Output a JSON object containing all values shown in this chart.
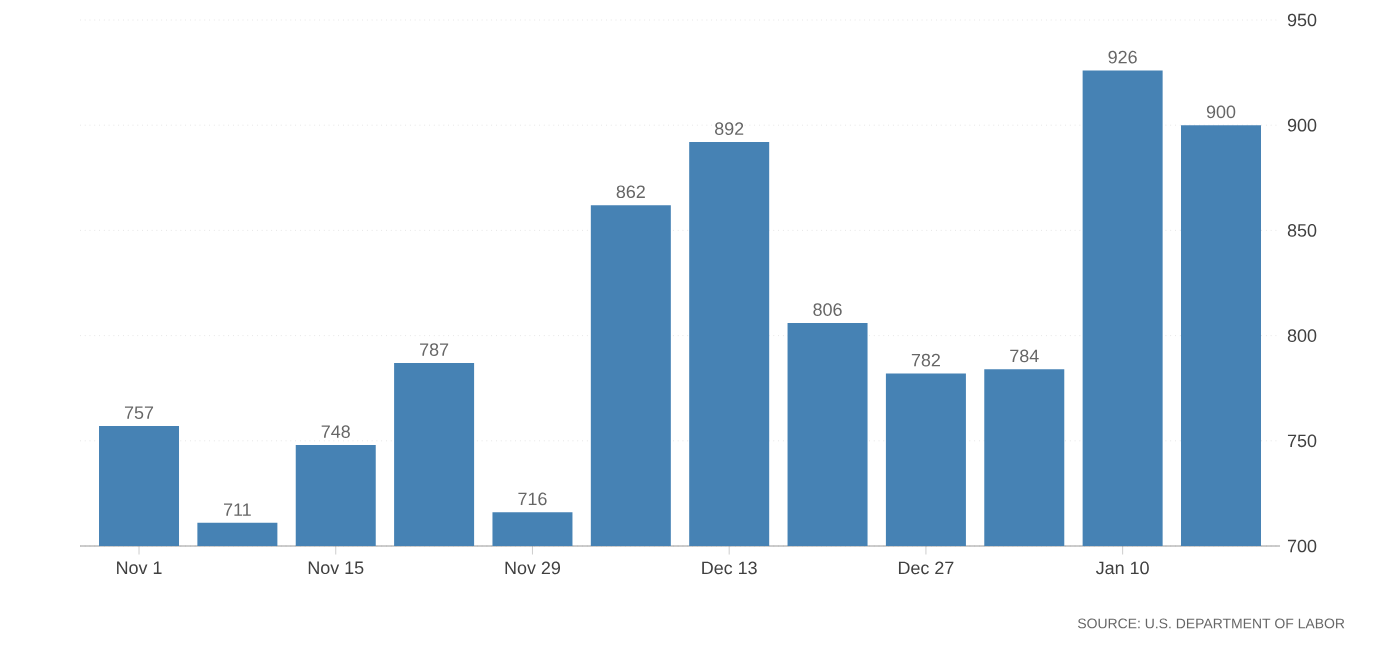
{
  "chart_data": {
    "type": "bar",
    "categories": [
      "Nov 1",
      null,
      "Nov 15",
      null,
      "Nov 29",
      null,
      "Dec 13",
      null,
      "Dec 27",
      null,
      "Jan 10",
      null
    ],
    "values": [
      757,
      711,
      748,
      787,
      716,
      862,
      892,
      806,
      782,
      784,
      926,
      900
    ],
    "color": "#4682b4",
    "ylim": [
      700,
      950
    ],
    "yticks": [
      700,
      750,
      800,
      850,
      900,
      950
    ],
    "grid": "y",
    "data_labels": true,
    "annotations": [
      "SOURCE: U.S. DEPARTMENT OF LABOR"
    ]
  }
}
